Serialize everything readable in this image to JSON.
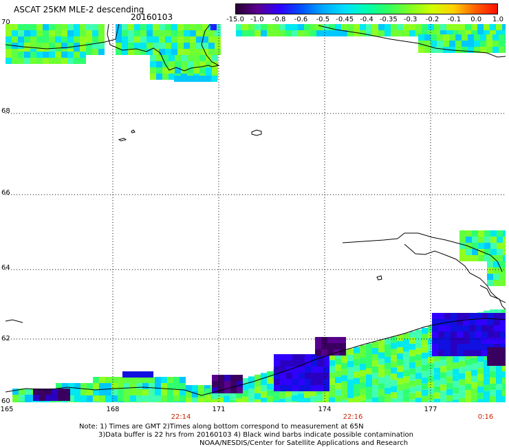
{
  "header": {
    "title": "ASCAT 25KM MLE-2 descending",
    "date": "20160103"
  },
  "colorbar": {
    "ticks": [
      "-15.0",
      "-1.0",
      "-0.8",
      "-0.6",
      "-0.5",
      "-0.45",
      "-0.4",
      "-0.35",
      "-0.3",
      "-0.2",
      "-0.1",
      "0.0",
      "1.0"
    ],
    "colors": [
      "#2a0030",
      "#5a0090",
      "#3000ff",
      "#0050ff",
      "#00a8ff",
      "#00e0ff",
      "#00ffb0",
      "#30ff60",
      "#80ff20",
      "#d0ff00",
      "#ffd000",
      "#ff6000",
      "#ff1000"
    ]
  },
  "axes": {
    "lat_labels": [
      "70",
      "68",
      "66",
      "64",
      "62",
      "60"
    ],
    "lon_labels": [
      "165",
      "168",
      "171",
      "174",
      "177"
    ],
    "time_labels": [
      "22:14",
      "22:16",
      "0:16"
    ]
  },
  "notes": {
    "line1": "Note: 1) Times are GMT 2)Times along bottom correspond to measurement at 65N",
    "line2": "3)Data buffer is 22 hrs from 20160103 4) Black wind barbs indicate possible contamination",
    "line3": "NOAA/NESDIS/Center for Satellite Applications and Research"
  },
  "legend_colors": {
    "deep_purple": "#3a0060",
    "blue": "#1010e0",
    "cyan": "#00e8f0",
    "green": "#40ff40",
    "lime": "#90ff20"
  }
}
